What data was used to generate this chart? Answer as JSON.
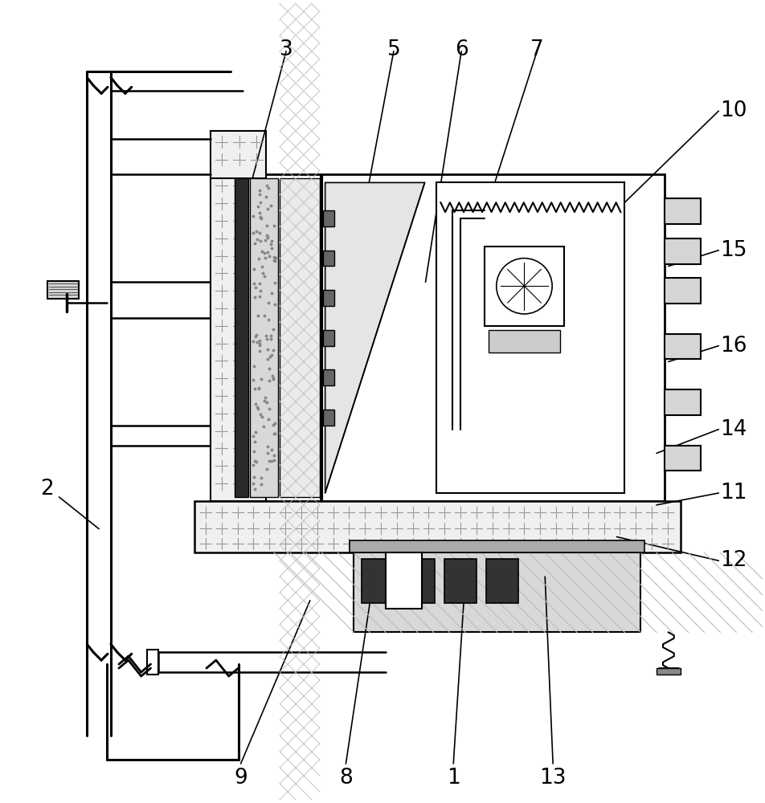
{
  "bg_color": "#ffffff",
  "lw_main": 1.8,
  "lw_thin": 1.0,
  "label_fontsize": 19,
  "gray_light": "#f0f0f0",
  "gray_med": "#cccccc",
  "gray_dark": "#888888",
  "black": "#000000",
  "plus_color": "#999999",
  "hatch_color": "#aaaaaa"
}
